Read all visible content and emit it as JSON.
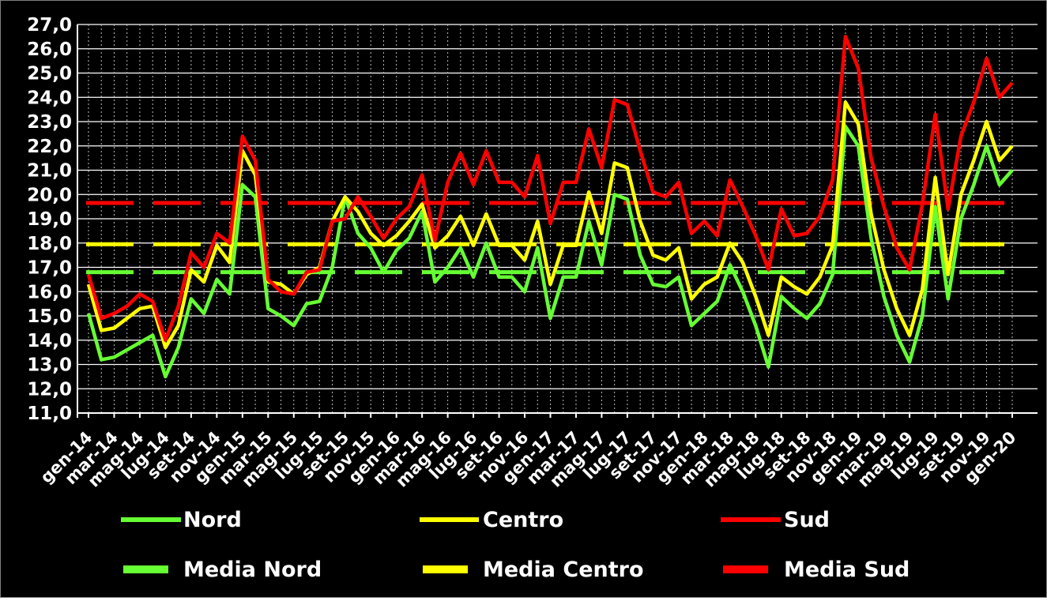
{
  "chart_data": {
    "type": "line",
    "title": "",
    "xlabel": "",
    "ylabel": "",
    "ylim": [
      11,
      27
    ],
    "yticks": [
      "11,0",
      "12,0",
      "13,0",
      "14,0",
      "15,0",
      "16,0",
      "17,0",
      "18,0",
      "19,0",
      "20,0",
      "21,0",
      "22,0",
      "23,0",
      "24,0",
      "25,0",
      "26,0",
      "27,0"
    ],
    "x_tick_labels": [
      "gen-14",
      "mar-14",
      "mag-14",
      "lug-14",
      "set-14",
      "nov-14",
      "gen-15",
      "mar-15",
      "mag-15",
      "lug-15",
      "set-15",
      "nov-15",
      "gen-16",
      "mar-16",
      "mag-16",
      "lug-16",
      "set-16",
      "nov-16",
      "gen-17",
      "mar-17",
      "mag-17",
      "lug-17",
      "set-17",
      "nov-17",
      "gen-18",
      "mar-18",
      "mag-18",
      "lug-18",
      "set-18",
      "nov-18",
      "gen-19",
      "mar-19",
      "mag-19",
      "lug-19",
      "set-19",
      "nov-19",
      "gen-20"
    ],
    "grid": true,
    "legend_placement": "bottom",
    "background": "#000000",
    "series": [
      {
        "name": "Nord",
        "color": "#66ff33",
        "style": "solid",
        "values": [
          15.1,
          13.2,
          13.3,
          13.6,
          13.9,
          14.2,
          12.5,
          13.7,
          15.7,
          15.1,
          16.5,
          15.9,
          20.4,
          19.9,
          15.3,
          15.0,
          14.6,
          15.5,
          15.6,
          17.0,
          19.9,
          18.4,
          17.8,
          16.8,
          17.7,
          18.2,
          19.3,
          16.4,
          17.0,
          17.8,
          16.6,
          18.0,
          16.6,
          16.6,
          16.0,
          17.8,
          14.9,
          16.6,
          16.6,
          18.9,
          17.1,
          20.0,
          19.8,
          17.5,
          16.3,
          16.2,
          16.6,
          14.6,
          15.1,
          15.6,
          17.1,
          16.0,
          14.6,
          12.9,
          15.8,
          15.3,
          14.9,
          15.5,
          16.7,
          22.8,
          22.0,
          18.2,
          15.8,
          14.2,
          13.1,
          15.0,
          19.5,
          15.7,
          19.0,
          20.4,
          22.0,
          20.4,
          21.0
        ]
      },
      {
        "name": "Centro",
        "color": "#ffff00",
        "style": "solid",
        "values": [
          16.3,
          14.4,
          14.5,
          14.9,
          15.3,
          15.4,
          13.7,
          14.6,
          16.9,
          16.4,
          17.9,
          17.2,
          21.8,
          20.8,
          16.4,
          16.3,
          15.9,
          16.7,
          17.0,
          18.9,
          19.9,
          19.3,
          18.4,
          17.9,
          18.3,
          18.9,
          19.6,
          17.8,
          18.3,
          19.1,
          17.9,
          19.2,
          17.9,
          17.9,
          17.3,
          18.9,
          16.3,
          17.9,
          17.9,
          20.1,
          18.4,
          21.3,
          21.1,
          18.9,
          17.5,
          17.3,
          17.8,
          15.7,
          16.3,
          16.6,
          18.0,
          17.2,
          15.8,
          14.2,
          16.6,
          16.2,
          15.9,
          16.6,
          17.9,
          23.8,
          22.9,
          19.2,
          16.9,
          15.3,
          14.2,
          16.1,
          20.7,
          16.7,
          20.0,
          21.4,
          23.0,
          21.4,
          22.0
        ]
      },
      {
        "name": "Sud",
        "color": "#ff0000",
        "style": "solid",
        "values": [
          16.7,
          14.9,
          15.1,
          15.4,
          15.9,
          15.6,
          14.0,
          15.4,
          17.6,
          17.0,
          18.4,
          18.0,
          22.4,
          21.4,
          16.5,
          16.0,
          15.9,
          16.8,
          16.9,
          18.9,
          19.0,
          19.9,
          19.1,
          18.2,
          19.0,
          19.5,
          20.8,
          18.1,
          20.5,
          21.7,
          20.4,
          21.8,
          20.5,
          20.5,
          19.9,
          21.6,
          18.8,
          20.5,
          20.5,
          22.7,
          21.1,
          23.9,
          23.7,
          21.8,
          20.1,
          19.9,
          20.5,
          18.4,
          18.9,
          18.3,
          20.6,
          19.5,
          18.3,
          16.9,
          19.4,
          18.3,
          18.4,
          19.1,
          20.6,
          26.5,
          25.2,
          21.5,
          19.5,
          17.8,
          16.9,
          19.6,
          23.3,
          19.4,
          22.4,
          23.8,
          25.6,
          24.0,
          24.6
        ]
      },
      {
        "name": "Media Nord",
        "color": "#66ff33",
        "style": "dashed",
        "constant": 16.8
      },
      {
        "name": "Media Centro",
        "color": "#ffff00",
        "style": "dashed",
        "constant": 17.95
      },
      {
        "name": "Media Sud",
        "color": "#ff0000",
        "style": "dashed",
        "constant": 19.65
      }
    ]
  },
  "legend": {
    "items": [
      {
        "label": "Nord",
        "color": "#66ff33"
      },
      {
        "label": "Centro",
        "color": "#ffff00"
      },
      {
        "label": "Sud",
        "color": "#ff0000"
      },
      {
        "label": "Media Nord",
        "color": "#66ff33"
      },
      {
        "label": "Media Centro",
        "color": "#ffff00"
      },
      {
        "label": "Media Sud",
        "color": "#ff0000"
      }
    ]
  }
}
